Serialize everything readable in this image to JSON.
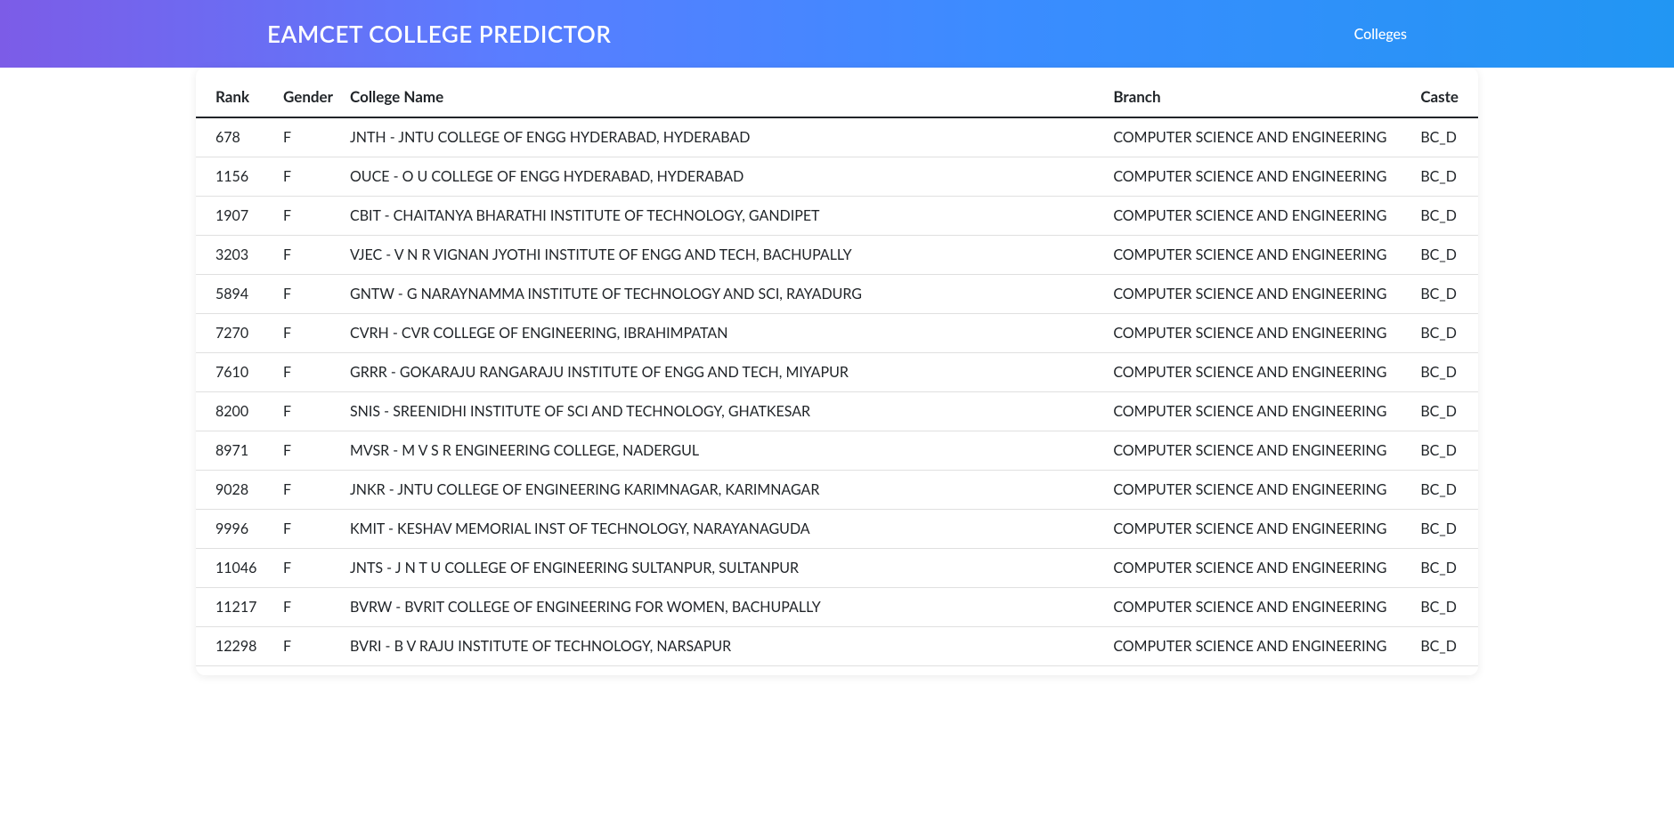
{
  "navbar": {
    "title": "EAMCET COLLEGE PREDICTOR",
    "link_colleges": "Colleges"
  },
  "table": {
    "columns": {
      "rank": "Rank",
      "gender": "Gender",
      "college": "College Name",
      "branch": "Branch",
      "caste": "Caste"
    },
    "rows": [
      {
        "rank": "678",
        "gender": "F",
        "college": "JNTH - JNTU COLLEGE OF ENGG HYDERABAD, HYDERABAD",
        "branch": "COMPUTER SCIENCE AND ENGINEERING",
        "caste": "BC_D"
      },
      {
        "rank": "1156",
        "gender": "F",
        "college": "OUCE - O U COLLEGE OF ENGG HYDERABAD, HYDERABAD",
        "branch": "COMPUTER SCIENCE AND ENGINEERING",
        "caste": "BC_D"
      },
      {
        "rank": "1907",
        "gender": "F",
        "college": "CBIT - CHAITANYA BHARATHI INSTITUTE OF TECHNOLOGY, GANDIPET",
        "branch": "COMPUTER SCIENCE AND ENGINEERING",
        "caste": "BC_D"
      },
      {
        "rank": "3203",
        "gender": "F",
        "college": "VJEC - V N R VIGNAN JYOTHI INSTITUTE OF ENGG AND TECH, BACHUPALLY",
        "branch": "COMPUTER SCIENCE AND ENGINEERING",
        "caste": "BC_D"
      },
      {
        "rank": "5894",
        "gender": "F",
        "college": "GNTW - G NARAYNAMMA INSTITUTE OF TECHNOLOGY AND SCI, RAYADURG",
        "branch": "COMPUTER SCIENCE AND ENGINEERING",
        "caste": "BC_D"
      },
      {
        "rank": "7270",
        "gender": "F",
        "college": "CVRH - CVR COLLEGE OF ENGINEERING, IBRAHIMPATAN",
        "branch": "COMPUTER SCIENCE AND ENGINEERING",
        "caste": "BC_D"
      },
      {
        "rank": "7610",
        "gender": "F",
        "college": "GRRR - GOKARAJU RANGARAJU INSTITUTE OF ENGG AND TECH, MIYAPUR",
        "branch": "COMPUTER SCIENCE AND ENGINEERING",
        "caste": "BC_D"
      },
      {
        "rank": "8200",
        "gender": "F",
        "college": "SNIS - SREENIDHI INSTITUTE OF SCI AND TECHNOLOGY, GHATKESAR",
        "branch": "COMPUTER SCIENCE AND ENGINEERING",
        "caste": "BC_D"
      },
      {
        "rank": "8971",
        "gender": "F",
        "college": "MVSR - M V S R ENGINEERING COLLEGE, NADERGUL",
        "branch": "COMPUTER SCIENCE AND ENGINEERING",
        "caste": "BC_D"
      },
      {
        "rank": "9028",
        "gender": "F",
        "college": "JNKR - JNTU COLLEGE OF ENGINEERING KARIMNAGAR, KARIMNAGAR",
        "branch": "COMPUTER SCIENCE AND ENGINEERING",
        "caste": "BC_D"
      },
      {
        "rank": "9996",
        "gender": "F",
        "college": "KMIT - KESHAV MEMORIAL INST OF TECHNOLOGY, NARAYANAGUDA",
        "branch": "COMPUTER SCIENCE AND ENGINEERING",
        "caste": "BC_D"
      },
      {
        "rank": "11046",
        "gender": "F",
        "college": "JNTS - J N T U COLLEGE OF ENGINEERING SULTANPUR, SULTANPUR",
        "branch": "COMPUTER SCIENCE AND ENGINEERING",
        "caste": "BC_D"
      },
      {
        "rank": "11217",
        "gender": "F",
        "college": "BVRW - BVRIT COLLEGE OF ENGINEERING FOR WOMEN, BACHUPALLY",
        "branch": "COMPUTER SCIENCE AND ENGINEERING",
        "caste": "BC_D"
      },
      {
        "rank": "12298",
        "gender": "F",
        "college": "BVRI - B V RAJU INSTITUTE OF TECHNOLOGY, NARSAPUR",
        "branch": "COMPUTER SCIENCE AND ENGINEERING",
        "caste": "BC_D"
      }
    ]
  },
  "styling": {
    "navbar_gradient_start": "#7c5ce7",
    "navbar_gradient_end": "#2196f3",
    "text_color": "#212529",
    "border_bottom_header": "#212529",
    "border_bottom_row": "#e0e0e0",
    "card_background": "#ffffff",
    "body_background": "#ffffff",
    "title_fontsize": 26,
    "header_fontsize": 17,
    "cell_fontsize": 16
  }
}
